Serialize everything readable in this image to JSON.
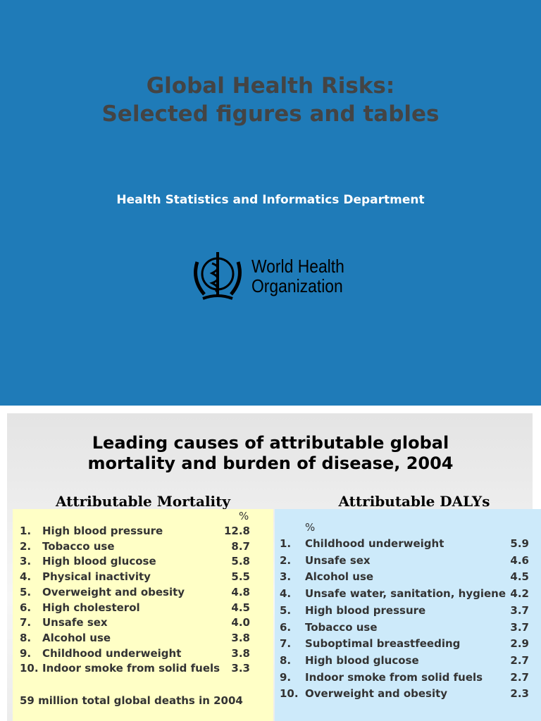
{
  "slide1": {
    "title_lines": [
      "Global Health Risks:",
      "Selected figures and tables"
    ],
    "subtitle": "Health Statistics and Informatics Department",
    "logo_text": [
      "World Health",
      "Organization"
    ]
  },
  "slide2": {
    "title_lines": [
      "Leading causes of attributable global",
      "mortality and burden of disease, 2004"
    ],
    "mortality": {
      "heading": "Attributable Mortality",
      "unit": "%",
      "rows": [
        [
          "1.",
          "High blood pressure",
          "12.8"
        ],
        [
          "2.",
          "Tobacco use",
          "8.7"
        ],
        [
          "3.",
          "High blood glucose",
          "5.8"
        ],
        [
          "4.",
          "Physical inactivity",
          "5.5"
        ],
        [
          "5.",
          "Overweight and obesity",
          "4.8"
        ],
        [
          "6.",
          "High cholesterol",
          "4.5"
        ],
        [
          "7.",
          "Unsafe sex",
          "4.0"
        ],
        [
          "8.",
          "Alcohol use",
          "3.8"
        ],
        [
          "9.",
          "Childhood underweight",
          "3.8"
        ],
        [
          "10.",
          "Indoor smoke from solid fuels",
          "3.3"
        ]
      ],
      "footer": "59 million total global deaths in 2004"
    },
    "dalys": {
      "heading": "Attributable DALYs",
      "unit": "%",
      "rows": [
        [
          "1.",
          "Childhood underweight",
          "5.9"
        ],
        [
          "2.",
          "Unsafe sex",
          "4.6"
        ],
        [
          "3.",
          "Alcohol use",
          "4.5"
        ],
        [
          "4.",
          "Unsafe water, sanitation, hygiene",
          "4.2"
        ],
        [
          "5.",
          "High blood pressure",
          "3.7"
        ],
        [
          "6.",
          "Tobacco use",
          "3.7"
        ],
        [
          "7.",
          "Suboptimal breastfeeding",
          "2.9"
        ],
        [
          "8.",
          "High blood glucose",
          "2.7"
        ],
        [
          "9.",
          "Indoor smoke from solid fuels",
          "2.7"
        ],
        [
          "10.",
          "Overweight and obesity",
          "2.3"
        ]
      ]
    }
  }
}
